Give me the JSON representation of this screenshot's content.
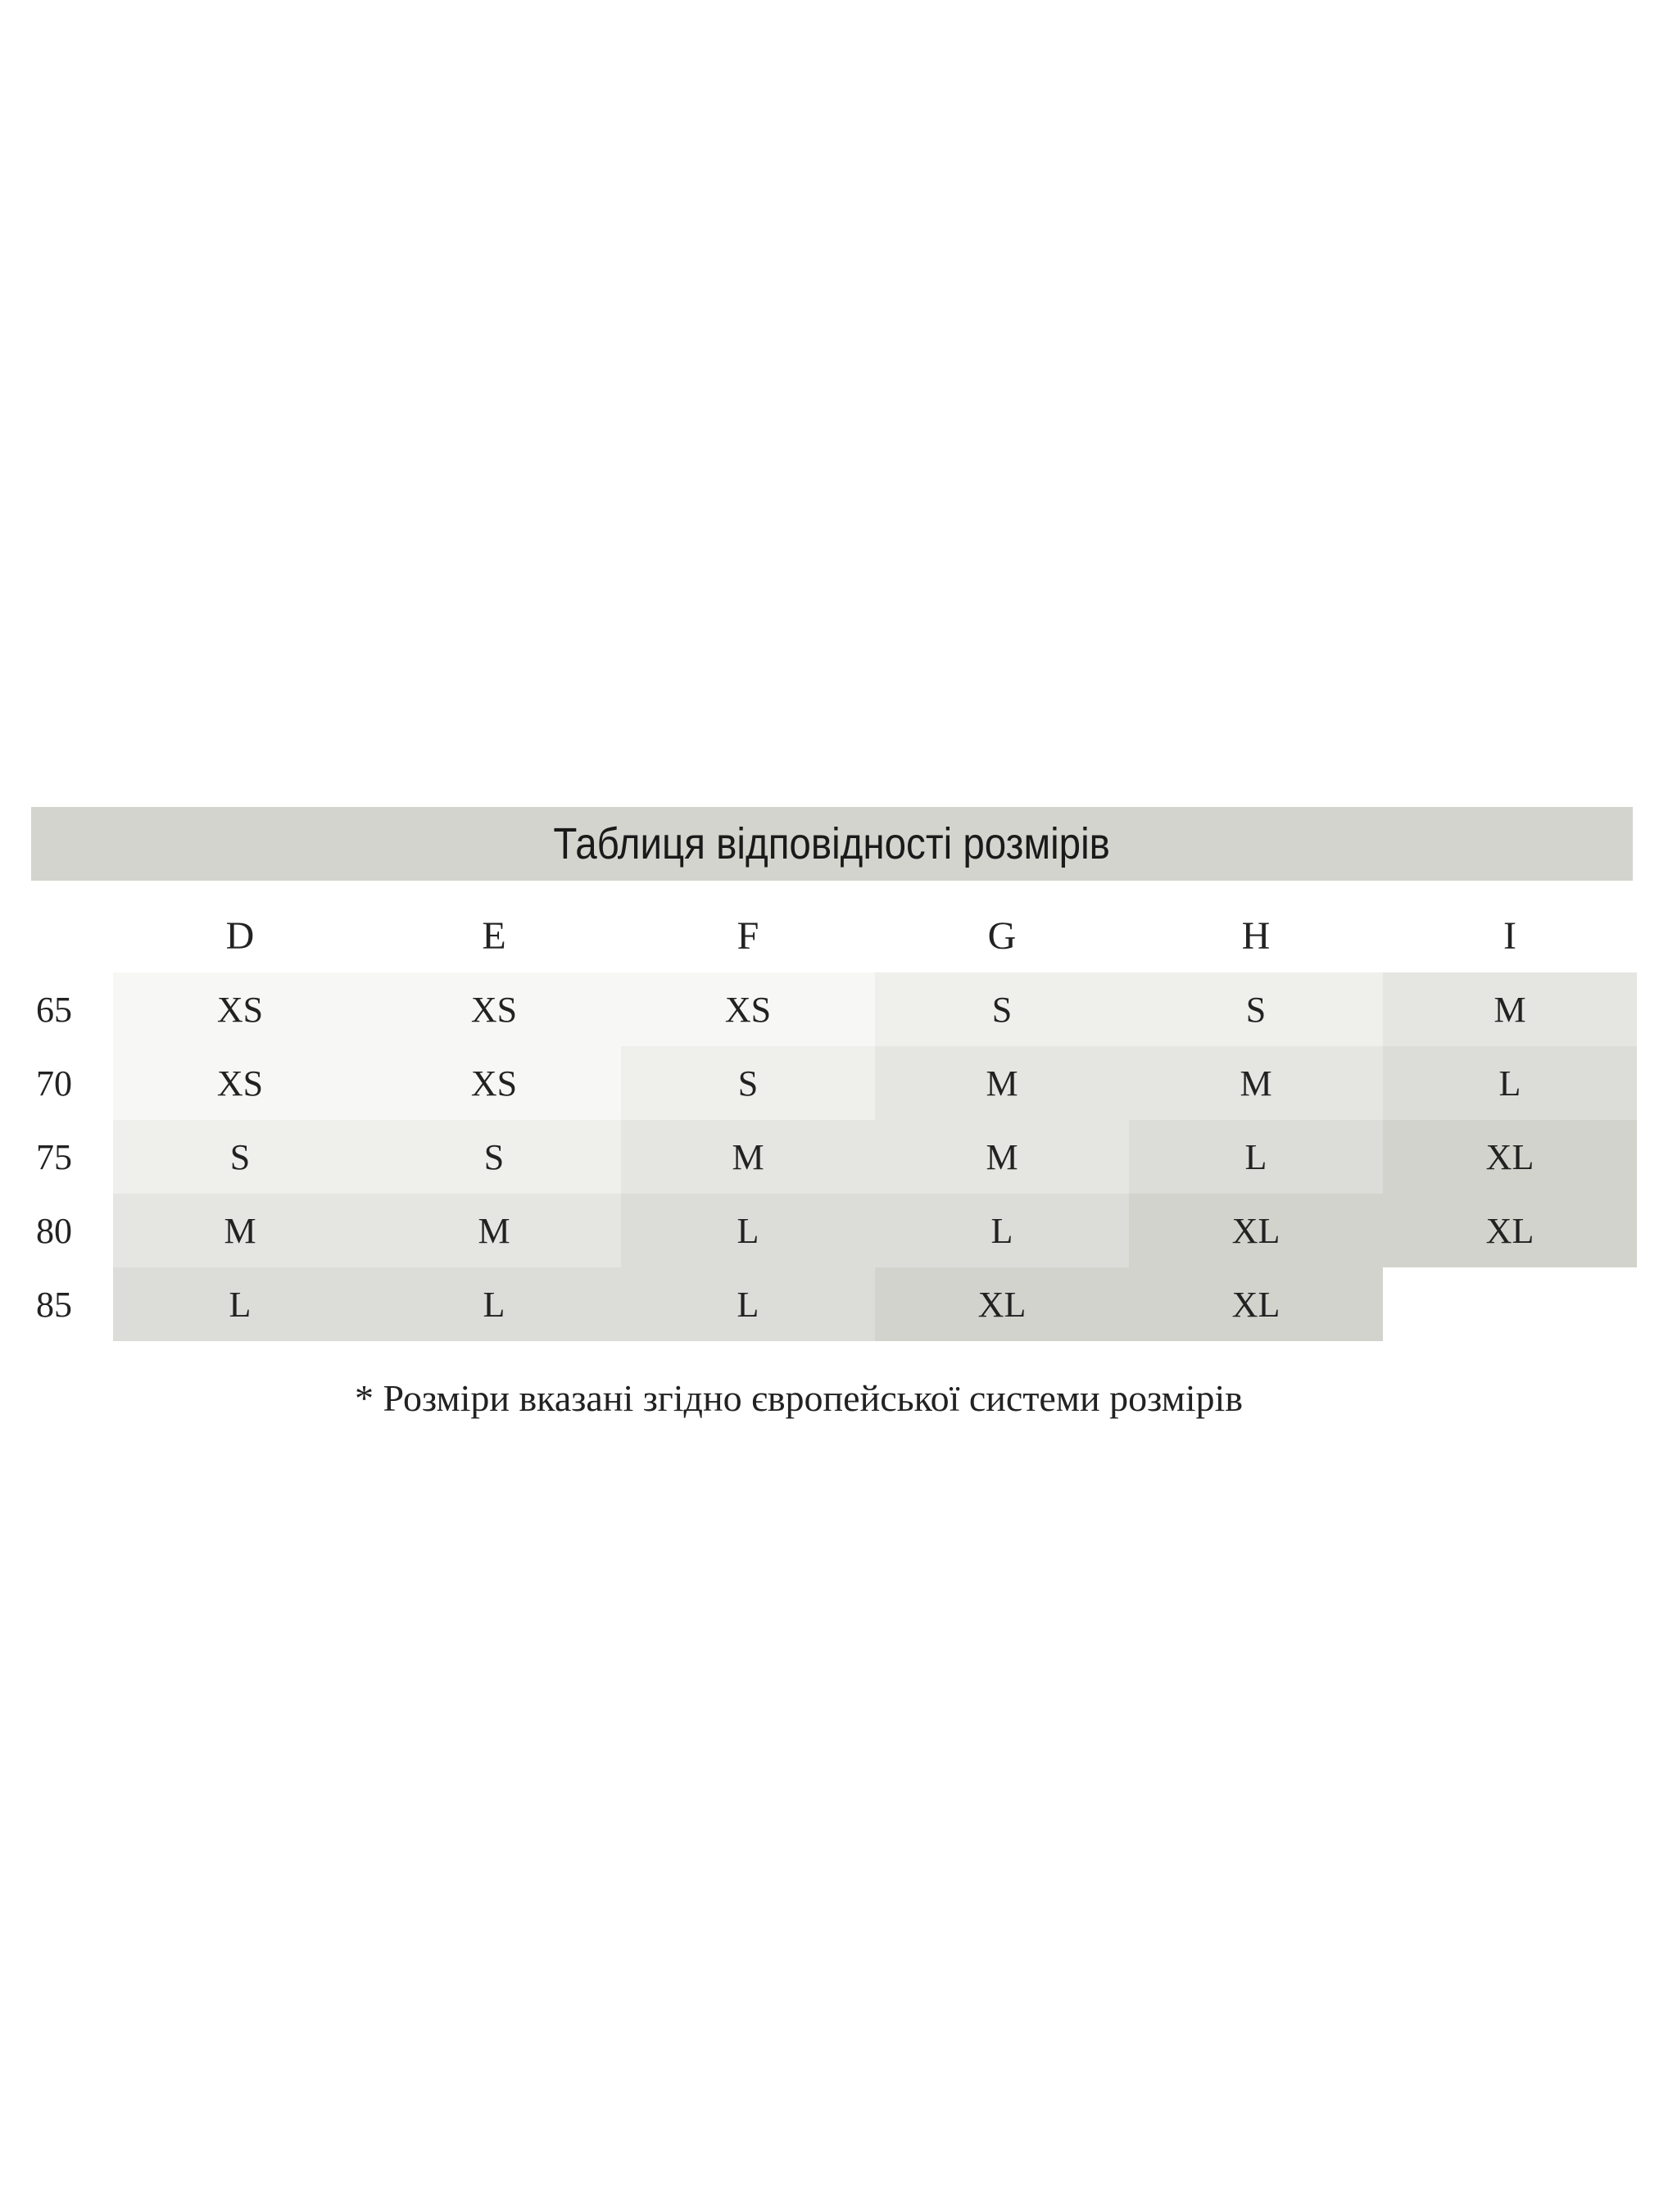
{
  "title": "Таблиця відповідності розмірів",
  "columns": [
    "D",
    "E",
    "F",
    "G",
    "H",
    "I"
  ],
  "rows": [
    {
      "band": "65",
      "sizes": [
        "XS",
        "XS",
        "XS",
        "S",
        "S",
        "M"
      ]
    },
    {
      "band": "70",
      "sizes": [
        "XS",
        "XS",
        "S",
        "M",
        "M",
        "L"
      ]
    },
    {
      "band": "75",
      "sizes": [
        "S",
        "S",
        "M",
        "M",
        "L",
        "XL"
      ]
    },
    {
      "band": "80",
      "sizes": [
        "M",
        "M",
        "L",
        "L",
        "XL",
        "XL"
      ]
    },
    {
      "band": "85",
      "sizes": [
        "L",
        "L",
        "L",
        "XL",
        "XL",
        ""
      ]
    }
  ],
  "size_colors": {
    "XS": "#f7f7f5",
    "S": "#efefec",
    "M": "#e5e5e1",
    "L": "#dcdcd8",
    "XL": "#d3d3ce"
  },
  "note": "* Розміри вказані згідно європейської системи розмірів"
}
